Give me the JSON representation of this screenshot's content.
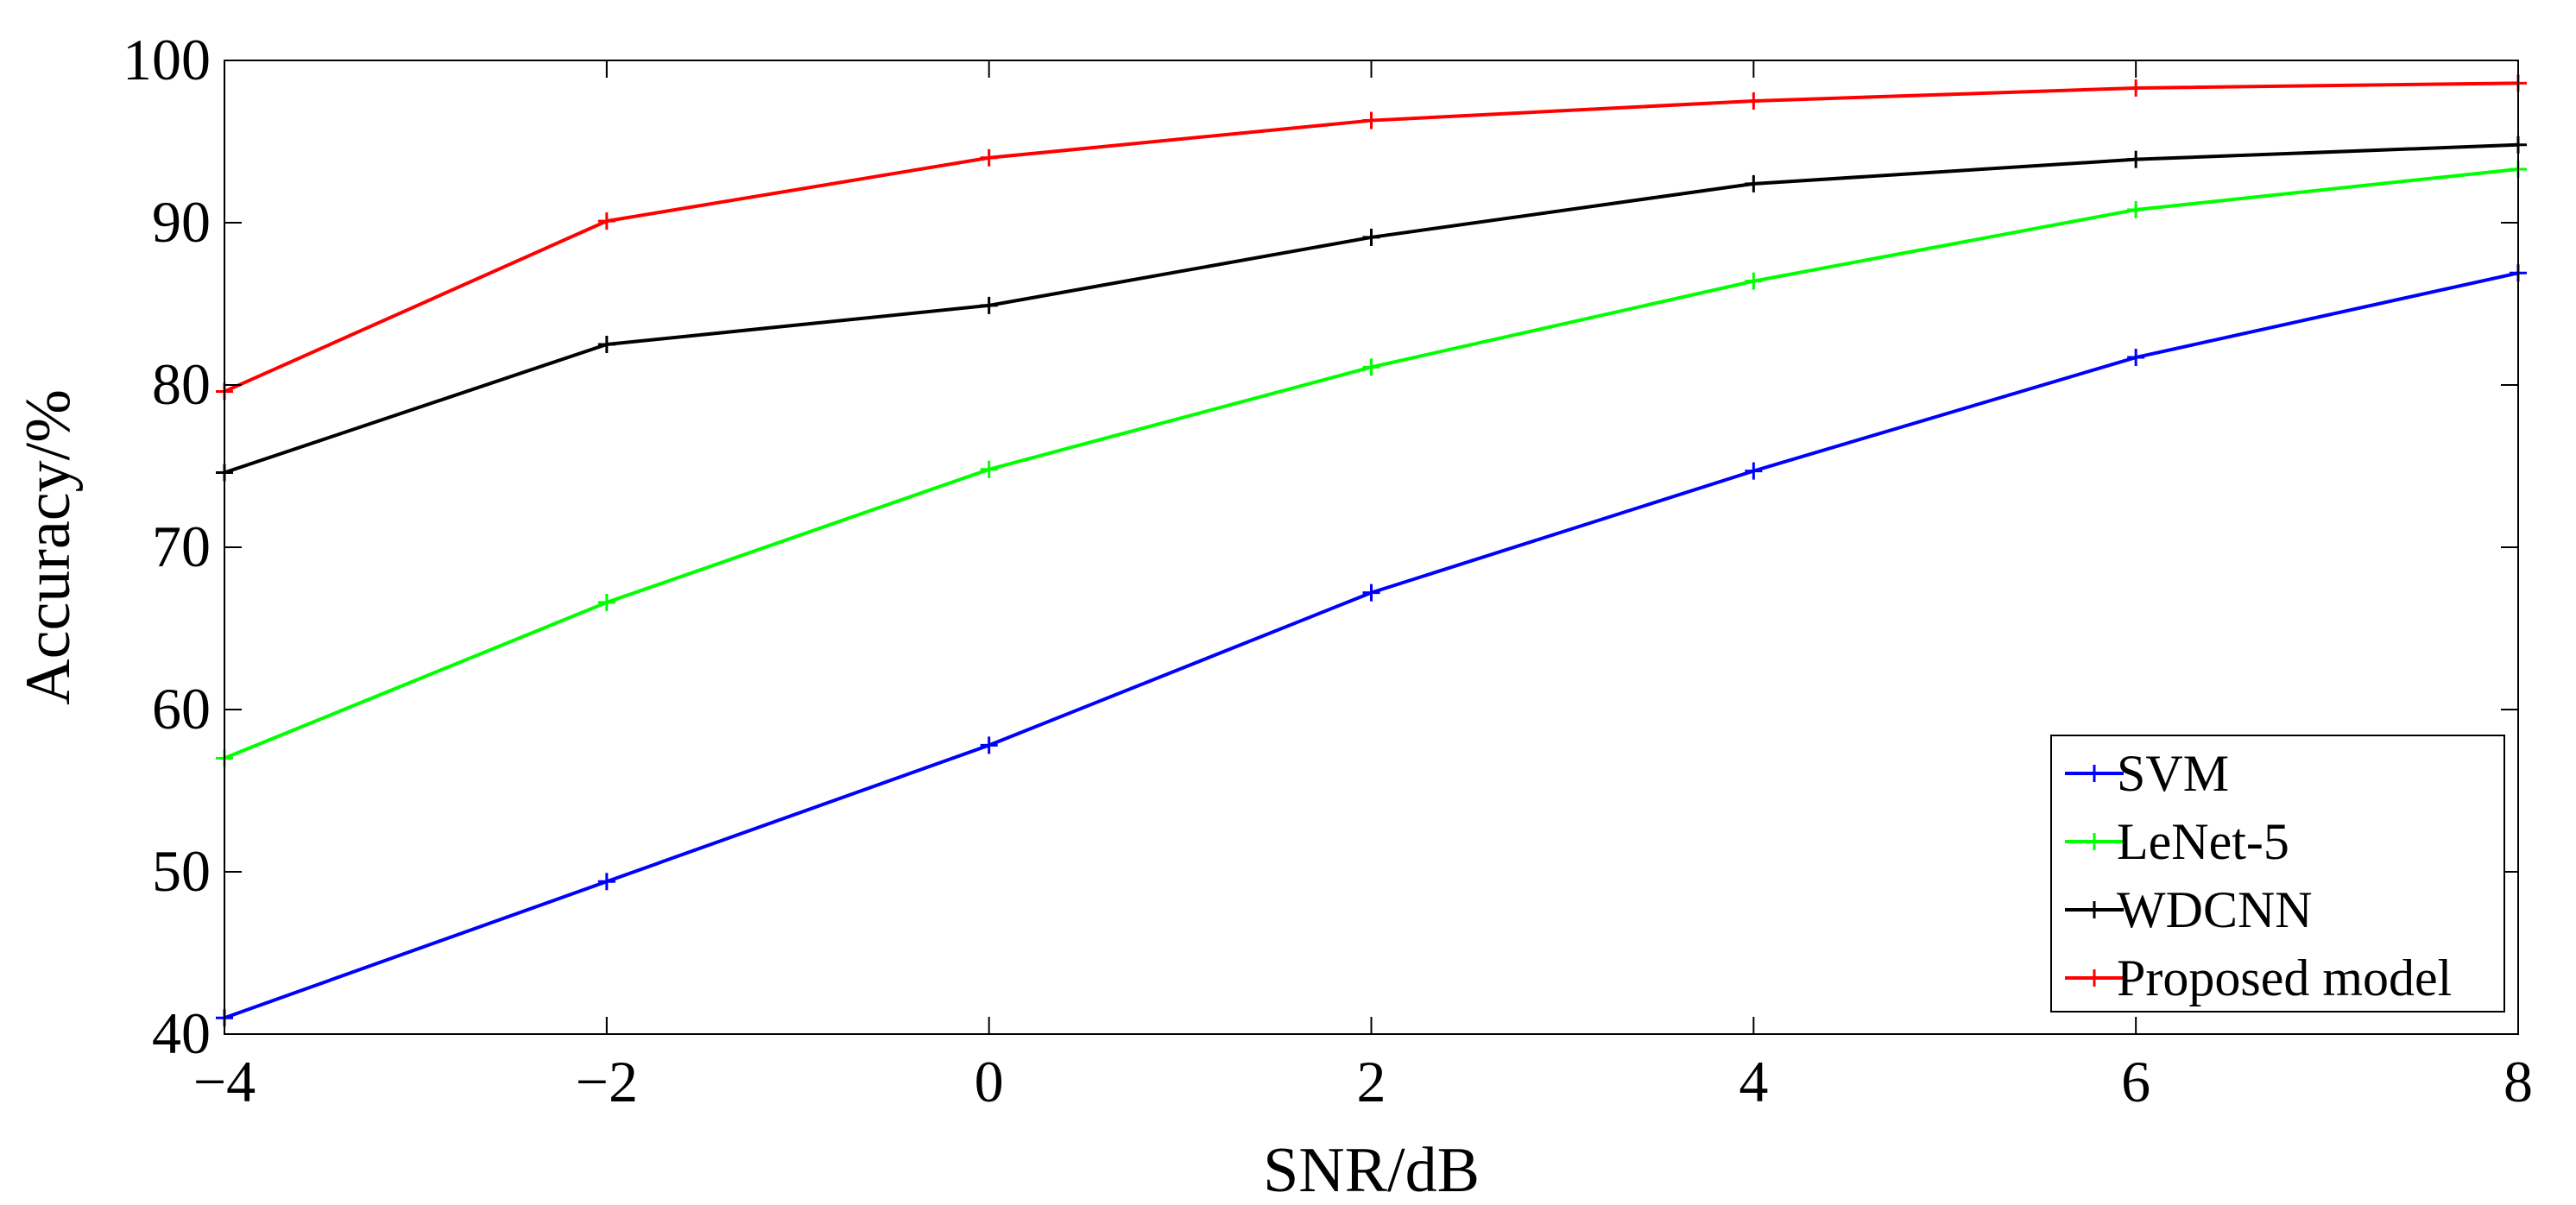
{
  "chart_data": {
    "type": "line",
    "title": "",
    "xlabel": "SNR/dB",
    "ylabel": "Accuracy/%",
    "xlim": [
      -4,
      8
    ],
    "ylim": [
      40,
      100
    ],
    "xticks": [
      -4,
      -2,
      0,
      2,
      4,
      6,
      8
    ],
    "xtick_labels": [
      "−4",
      "−2",
      "0",
      "2",
      "4",
      "6",
      "8"
    ],
    "yticks": [
      40,
      50,
      60,
      70,
      80,
      90,
      100
    ],
    "ytick_labels": [
      "40",
      "50",
      "60",
      "70",
      "80",
      "90",
      "100"
    ],
    "grid": false,
    "legend_position": "bottom-right",
    "x": [
      -4,
      -2,
      0,
      2,
      4,
      6,
      8
    ],
    "series": [
      {
        "name": "SVM",
        "color": "#0000ff",
        "marker": "plus",
        "values": [
          41.0,
          49.4,
          57.8,
          67.2,
          74.7,
          81.7,
          86.9
        ]
      },
      {
        "name": "LeNet-5",
        "color": "#00ff00",
        "marker": "plus",
        "values": [
          57.0,
          66.6,
          74.8,
          81.1,
          86.4,
          90.8,
          93.3
        ]
      },
      {
        "name": "WDCNN",
        "color": "#000000",
        "marker": "plus",
        "values": [
          74.6,
          82.5,
          84.9,
          89.1,
          92.4,
          93.9,
          94.8
        ]
      },
      {
        "name": "Proposed model",
        "color": "#ff0000",
        "marker": "plus",
        "values": [
          79.6,
          90.1,
          94.0,
          96.3,
          97.5,
          98.3,
          98.6
        ]
      }
    ]
  }
}
